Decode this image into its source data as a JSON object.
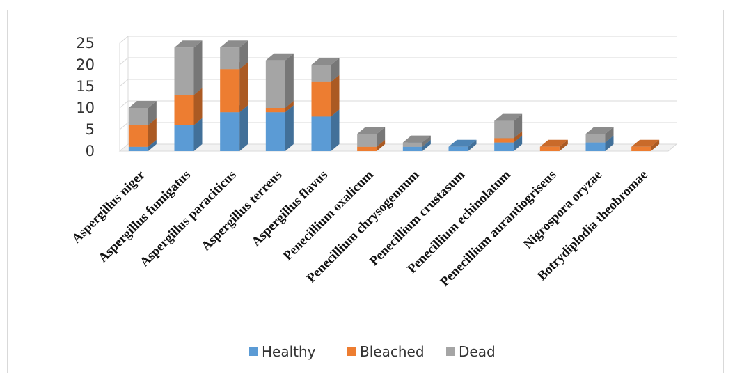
{
  "chart_data": {
    "type": "bar",
    "stacked": true,
    "style": "3d-column",
    "categories": [
      "Aspergillus niger",
      "Aspergillus fumigatus",
      "Aspergillus paraciticus",
      "Aspergillus terreus",
      "Aspergillus flavus",
      "Penecillium oxalicum",
      "Penecillium chrysogennum",
      "Penecillium crustasum",
      "Penecillium echinolatum",
      "Penecillium aurantiogriseus",
      "Nigrospora oryzae",
      "Botrydiplodia theobromae"
    ],
    "series": [
      {
        "name": "Healthy",
        "color": "#5B9BD5",
        "values": [
          1,
          6,
          9,
          9,
          8,
          0,
          1,
          1,
          2,
          0,
          2,
          0
        ]
      },
      {
        "name": "Bleached",
        "color": "#ED7D31",
        "values": [
          5,
          7,
          10,
          1,
          8,
          1,
          0,
          0,
          1,
          1,
          0,
          1
        ]
      },
      {
        "name": "Dead",
        "color": "#A5A5A5",
        "values": [
          4,
          11,
          5,
          11,
          4,
          3,
          1,
          0,
          4,
          0,
          2,
          0
        ]
      }
    ],
    "yticks": [
      0,
      5,
      10,
      15,
      20,
      25
    ],
    "ylim": [
      0,
      25
    ],
    "title": "",
    "xlabel": "",
    "ylabel": "",
    "grid": true,
    "legend": "bottom"
  }
}
